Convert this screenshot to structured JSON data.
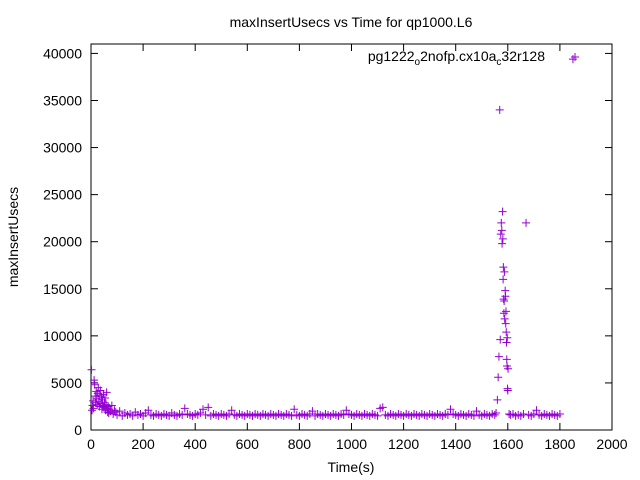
{
  "chart_data": {
    "type": "scatter",
    "title": "maxInsertUsecs vs Time for qp1000.L6",
    "xlabel": "Time(s)",
    "ylabel": "maxInsertUsecs",
    "xlim": [
      0,
      2000
    ],
    "ylim": [
      0,
      41000
    ],
    "xticks": [
      0,
      200,
      400,
      600,
      800,
      1000,
      1200,
      1400,
      1600,
      1800,
      2000
    ],
    "yticks": [
      0,
      5000,
      10000,
      15000,
      20000,
      25000,
      30000,
      35000,
      40000
    ],
    "grid": false,
    "legend_position": "top-right",
    "marker": "+",
    "series": [
      {
        "name": "pg1222_o2nofp.cx10a_c32r128",
        "legend_parts": [
          "pg1222",
          "o",
          "2nofp.cx10a",
          "c",
          "32r128"
        ],
        "color": "#9400d3",
        "points": [
          [
            2,
            6400
          ],
          [
            4,
            2100
          ],
          [
            6,
            2600
          ],
          [
            8,
            3100
          ],
          [
            10,
            2300
          ],
          [
            12,
            5300
          ],
          [
            14,
            4800
          ],
          [
            16,
            3600
          ],
          [
            18,
            2900
          ],
          [
            20,
            4100
          ],
          [
            22,
            3300
          ],
          [
            24,
            2700
          ],
          [
            26,
            3900
          ],
          [
            28,
            4500
          ],
          [
            30,
            3000
          ],
          [
            32,
            2500
          ],
          [
            34,
            3700
          ],
          [
            36,
            4200
          ],
          [
            38,
            2800
          ],
          [
            40,
            3500
          ],
          [
            42,
            2200
          ],
          [
            44,
            3200
          ],
          [
            46,
            2600
          ],
          [
            48,
            3800
          ],
          [
            50,
            2400
          ],
          [
            52,
            2900
          ],
          [
            54,
            3400
          ],
          [
            56,
            2100
          ],
          [
            58,
            2700
          ],
          [
            60,
            4000
          ],
          [
            62,
            2300
          ],
          [
            64,
            1900
          ],
          [
            66,
            2500
          ],
          [
            68,
            1800
          ],
          [
            70,
            2200
          ],
          [
            75,
            2000
          ],
          [
            80,
            2600
          ],
          [
            85,
            1700
          ],
          [
            90,
            2100
          ],
          [
            95,
            1900
          ],
          [
            100,
            1600
          ],
          [
            110,
            2000
          ],
          [
            120,
            1500
          ],
          [
            130,
            1800
          ],
          [
            140,
            1600
          ],
          [
            150,
            1700
          ],
          [
            160,
            1500
          ],
          [
            170,
            1900
          ],
          [
            180,
            1600
          ],
          [
            190,
            1700
          ],
          [
            200,
            1500
          ],
          [
            210,
            1800
          ],
          [
            220,
            2100
          ],
          [
            230,
            1600
          ],
          [
            240,
            1500
          ],
          [
            250,
            1700
          ],
          [
            260,
            1600
          ],
          [
            270,
            1500
          ],
          [
            280,
            1700
          ],
          [
            290,
            1600
          ],
          [
            300,
            1500
          ],
          [
            310,
            1800
          ],
          [
            320,
            1600
          ],
          [
            330,
            1500
          ],
          [
            340,
            1700
          ],
          [
            350,
            1600
          ],
          [
            360,
            2300
          ],
          [
            370,
            1700
          ],
          [
            380,
            1600
          ],
          [
            390,
            1500
          ],
          [
            400,
            1700
          ],
          [
            410,
            1600
          ],
          [
            420,
            1800
          ],
          [
            430,
            2200
          ],
          [
            440,
            1600
          ],
          [
            450,
            2400
          ],
          [
            460,
            1500
          ],
          [
            470,
            1700
          ],
          [
            480,
            1600
          ],
          [
            490,
            1500
          ],
          [
            500,
            1700
          ],
          [
            510,
            1600
          ],
          [
            520,
            1500
          ],
          [
            530,
            1700
          ],
          [
            540,
            2100
          ],
          [
            550,
            1600
          ],
          [
            560,
            1500
          ],
          [
            570,
            1700
          ],
          [
            580,
            1600
          ],
          [
            590,
            1500
          ],
          [
            600,
            1700
          ],
          [
            610,
            1600
          ],
          [
            620,
            1500
          ],
          [
            630,
            1700
          ],
          [
            640,
            1600
          ],
          [
            650,
            1500
          ],
          [
            660,
            1700
          ],
          [
            670,
            1600
          ],
          [
            680,
            1500
          ],
          [
            690,
            1700
          ],
          [
            700,
            1600
          ],
          [
            710,
            1500
          ],
          [
            720,
            1700
          ],
          [
            730,
            1600
          ],
          [
            740,
            1500
          ],
          [
            750,
            1700
          ],
          [
            760,
            1600
          ],
          [
            770,
            1500
          ],
          [
            780,
            2200
          ],
          [
            790,
            1600
          ],
          [
            800,
            1500
          ],
          [
            810,
            1700
          ],
          [
            820,
            1600
          ],
          [
            830,
            1500
          ],
          [
            840,
            1700
          ],
          [
            850,
            2000
          ],
          [
            860,
            1500
          ],
          [
            870,
            1700
          ],
          [
            880,
            1600
          ],
          [
            890,
            1500
          ],
          [
            900,
            1700
          ],
          [
            910,
            1600
          ],
          [
            920,
            1500
          ],
          [
            930,
            1700
          ],
          [
            940,
            1600
          ],
          [
            950,
            1500
          ],
          [
            960,
            1700
          ],
          [
            970,
            1600
          ],
          [
            980,
            2100
          ],
          [
            990,
            1700
          ],
          [
            1000,
            1600
          ],
          [
            1010,
            1500
          ],
          [
            1020,
            1700
          ],
          [
            1030,
            1600
          ],
          [
            1040,
            1500
          ],
          [
            1050,
            1700
          ],
          [
            1060,
            1600
          ],
          [
            1070,
            1500
          ],
          [
            1080,
            1700
          ],
          [
            1090,
            1600
          ],
          [
            1100,
            1500
          ],
          [
            1110,
            2300
          ],
          [
            1120,
            2400
          ],
          [
            1130,
            1600
          ],
          [
            1140,
            1500
          ],
          [
            1150,
            1700
          ],
          [
            1160,
            1600
          ],
          [
            1170,
            1500
          ],
          [
            1180,
            1700
          ],
          [
            1190,
            1600
          ],
          [
            1200,
            1500
          ],
          [
            1210,
            1700
          ],
          [
            1220,
            1600
          ],
          [
            1230,
            1500
          ],
          [
            1240,
            1700
          ],
          [
            1250,
            1600
          ],
          [
            1260,
            1500
          ],
          [
            1270,
            1700
          ],
          [
            1280,
            1600
          ],
          [
            1290,
            1500
          ],
          [
            1300,
            1700
          ],
          [
            1310,
            1600
          ],
          [
            1320,
            1500
          ],
          [
            1330,
            1700
          ],
          [
            1340,
            1600
          ],
          [
            1350,
            1500
          ],
          [
            1360,
            1700
          ],
          [
            1370,
            1600
          ],
          [
            1380,
            2200
          ],
          [
            1390,
            1700
          ],
          [
            1400,
            1600
          ],
          [
            1410,
            1500
          ],
          [
            1420,
            1700
          ],
          [
            1430,
            1600
          ],
          [
            1440,
            1500
          ],
          [
            1450,
            1700
          ],
          [
            1460,
            1600
          ],
          [
            1470,
            1500
          ],
          [
            1480,
            2000
          ],
          [
            1490,
            1600
          ],
          [
            1500,
            1500
          ],
          [
            1510,
            1700
          ],
          [
            1520,
            1600
          ],
          [
            1530,
            1500
          ],
          [
            1540,
            1700
          ],
          [
            1550,
            1600
          ],
          [
            1555,
            1800
          ],
          [
            1560,
            3200
          ],
          [
            1563,
            5600
          ],
          [
            1566,
            7800
          ],
          [
            1569,
            34000
          ],
          [
            1571,
            9600
          ],
          [
            1573,
            20800
          ],
          [
            1575,
            22000
          ],
          [
            1577,
            21200
          ],
          [
            1578,
            19800
          ],
          [
            1580,
            23200
          ],
          [
            1581,
            20300
          ],
          [
            1582,
            16000
          ],
          [
            1583,
            17300
          ],
          [
            1584,
            13900
          ],
          [
            1585,
            12400
          ],
          [
            1586,
            13700
          ],
          [
            1587,
            16800
          ],
          [
            1588,
            11800
          ],
          [
            1590,
            14800
          ],
          [
            1591,
            14200
          ],
          [
            1592,
            11300
          ],
          [
            1593,
            12600
          ],
          [
            1594,
            10400
          ],
          [
            1595,
            9300
          ],
          [
            1596,
            7500
          ],
          [
            1597,
            6800
          ],
          [
            1598,
            9800
          ],
          [
            1599,
            4400
          ],
          [
            1600,
            4200
          ],
          [
            1601,
            6500
          ],
          [
            1605,
            1700
          ],
          [
            1610,
            1600
          ],
          [
            1620,
            1700
          ],
          [
            1630,
            1500
          ],
          [
            1640,
            1600
          ],
          [
            1650,
            1500
          ],
          [
            1660,
            1700
          ],
          [
            1670,
            22000
          ],
          [
            1680,
            1600
          ],
          [
            1690,
            1500
          ],
          [
            1700,
            1700
          ],
          [
            1710,
            2100
          ],
          [
            1720,
            1600
          ],
          [
            1730,
            1500
          ],
          [
            1740,
            1700
          ],
          [
            1750,
            1600
          ],
          [
            1760,
            1500
          ],
          [
            1770,
            1700
          ],
          [
            1780,
            1600
          ],
          [
            1790,
            1500
          ],
          [
            1800,
            1700
          ],
          [
            1850,
            39400
          ]
        ]
      }
    ]
  }
}
